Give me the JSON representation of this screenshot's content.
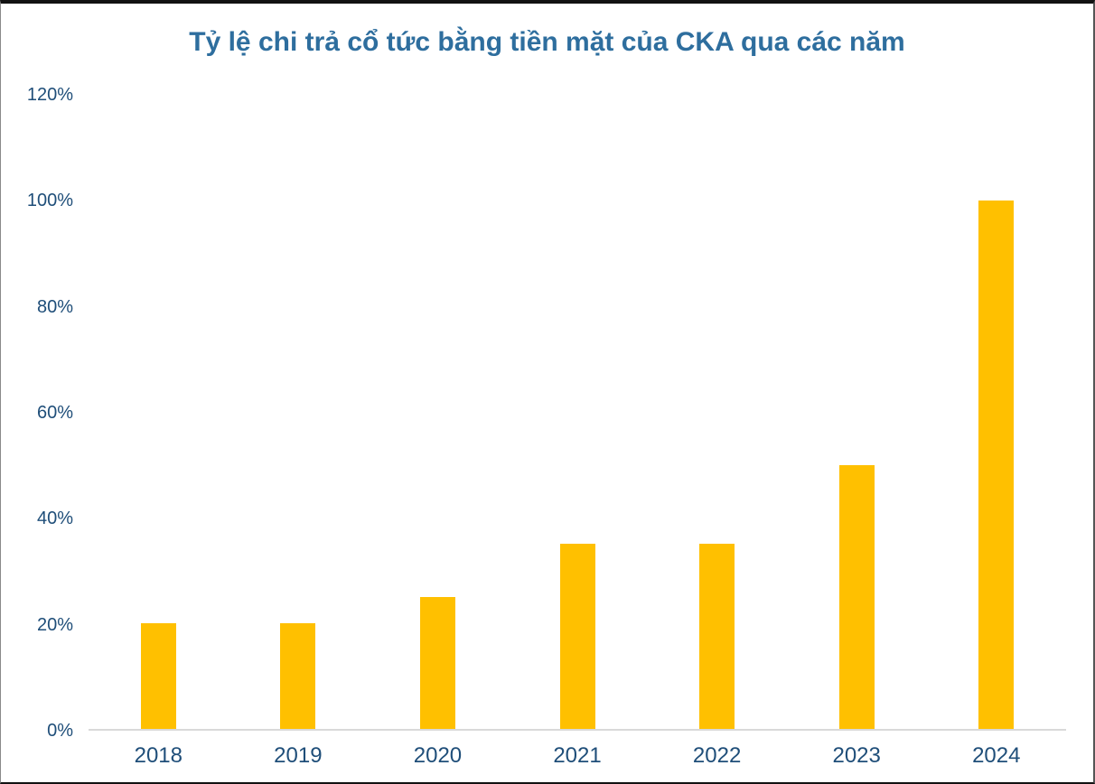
{
  "chart_data": {
    "type": "bar",
    "title": "Tỷ lệ chi trả cổ tức bằng tiền mặt của CKA qua các năm",
    "categories": [
      "2018",
      "2019",
      "2020",
      "2021",
      "2022",
      "2023",
      "2024"
    ],
    "values": [
      20,
      20,
      25,
      35,
      35,
      50,
      100
    ],
    "unit": "%",
    "xlabel": "",
    "ylabel": "",
    "ylim": [
      0,
      120
    ],
    "ytick_step": 20,
    "ytick_labels": [
      "0%",
      "20%",
      "40%",
      "60%",
      "80%",
      "100%",
      "120%"
    ],
    "grid": false,
    "legend": false,
    "colors": {
      "bar": "#FFC000",
      "title": "#2E6E9E",
      "axis_labels": "#1F4E79",
      "axis_line": "#D9D9D9",
      "background": "#FFFFFF"
    }
  }
}
